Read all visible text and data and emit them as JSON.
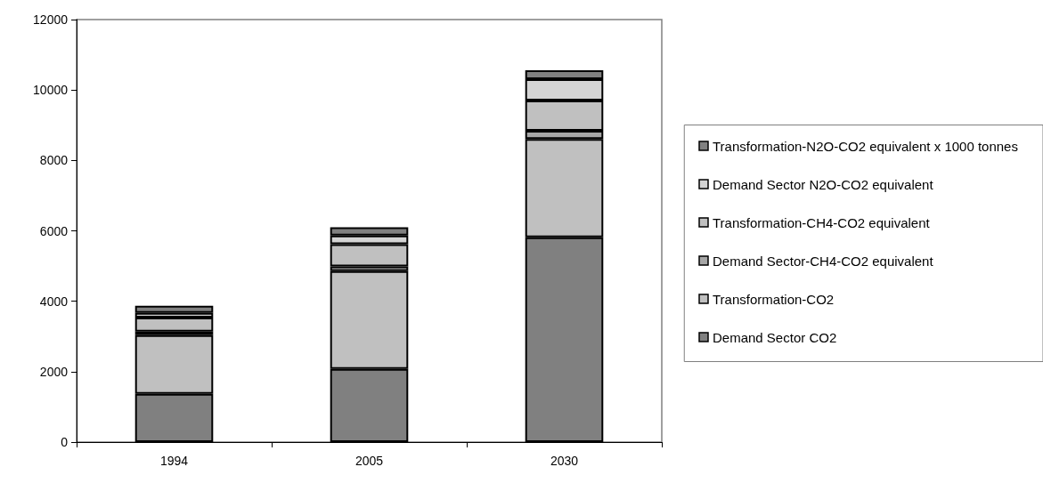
{
  "chart_data": {
    "type": "bar",
    "stacked": true,
    "categories": [
      "1994",
      "2005",
      "2030"
    ],
    "series": [
      {
        "name": "Demand Sector CO2",
        "color": "#808080",
        "values": [
          1370,
          2080,
          5820
        ]
      },
      {
        "name": "Transformation-CO2",
        "color": "#c0c0c0",
        "values": [
          1670,
          2780,
          2790
        ]
      },
      {
        "name": "Demand Sector-CH4-CO2 equivalent",
        "color": "#a6a6a6",
        "values": [
          100,
          130,
          230
        ]
      },
      {
        "name": "Transformation-CH4-CO2 equivalent",
        "color": "#c0c0c0",
        "values": [
          400,
          630,
          860
        ]
      },
      {
        "name": "Demand Sector N2O-CO2 equivalent",
        "color": "#d4d4d4",
        "values": [
          130,
          250,
          610
        ]
      },
      {
        "name": "Transformation-N2O-CO2 equivalent x 1000 tonnes",
        "color": "#808080",
        "values": [
          200,
          230,
          250
        ]
      }
    ],
    "ylim": [
      0,
      12000
    ],
    "yticks": [
      0,
      2000,
      4000,
      6000,
      8000,
      10000,
      12000
    ],
    "grid": false,
    "legend": "right"
  }
}
